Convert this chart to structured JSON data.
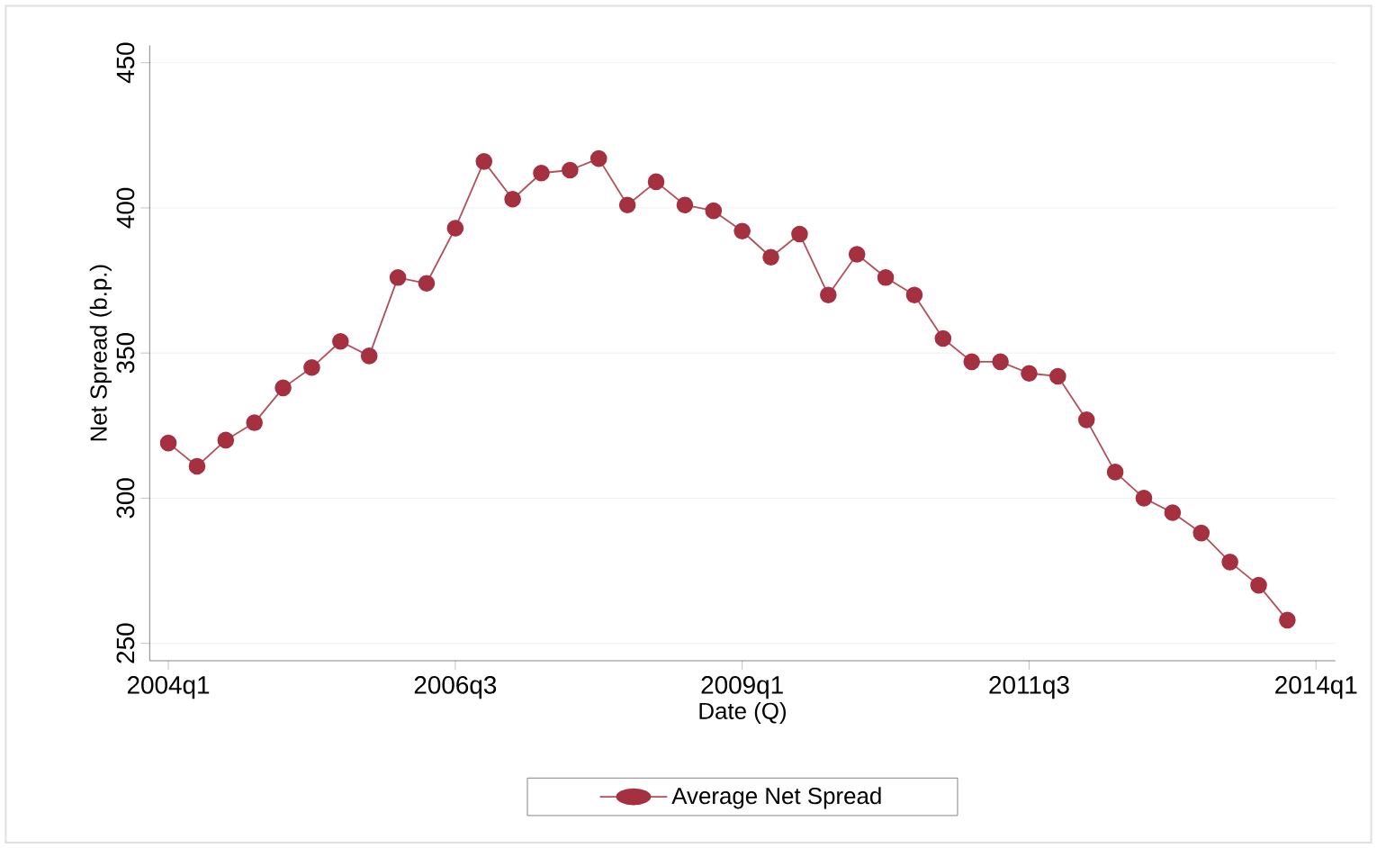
{
  "chart_data": {
    "type": "line",
    "xlabel": "Date (Q)",
    "ylabel": "Net Spread (b.p.)",
    "categories": [
      "2004q1",
      null,
      null,
      null,
      null,
      null,
      null,
      null,
      null,
      null,
      "2006q3",
      null,
      null,
      null,
      null,
      null,
      null,
      null,
      null,
      null,
      "2009q1",
      null,
      null,
      null,
      null,
      null,
      null,
      null,
      null,
      null,
      "2011q3",
      null,
      null,
      null,
      null,
      null,
      null,
      null,
      null,
      null,
      "2014q1"
    ],
    "series": [
      {
        "name": "Average Net Spread",
        "color": "#a5303f",
        "values": [
          319,
          311,
          320,
          326,
          338,
          345,
          354,
          349,
          376,
          374,
          393,
          416,
          403,
          412,
          413,
          417,
          401,
          409,
          401,
          399,
          392,
          383,
          391,
          370,
          384,
          376,
          370,
          355,
          347,
          347,
          343,
          342,
          327,
          309,
          300,
          295,
          288,
          278,
          270,
          258,
          null
        ]
      }
    ],
    "ylim": [
      244,
      456
    ],
    "yticks": [
      250,
      300,
      350,
      400,
      450
    ],
    "grid": "y",
    "legend": "bottom",
    "marker": "circle",
    "line_style": "solid"
  }
}
